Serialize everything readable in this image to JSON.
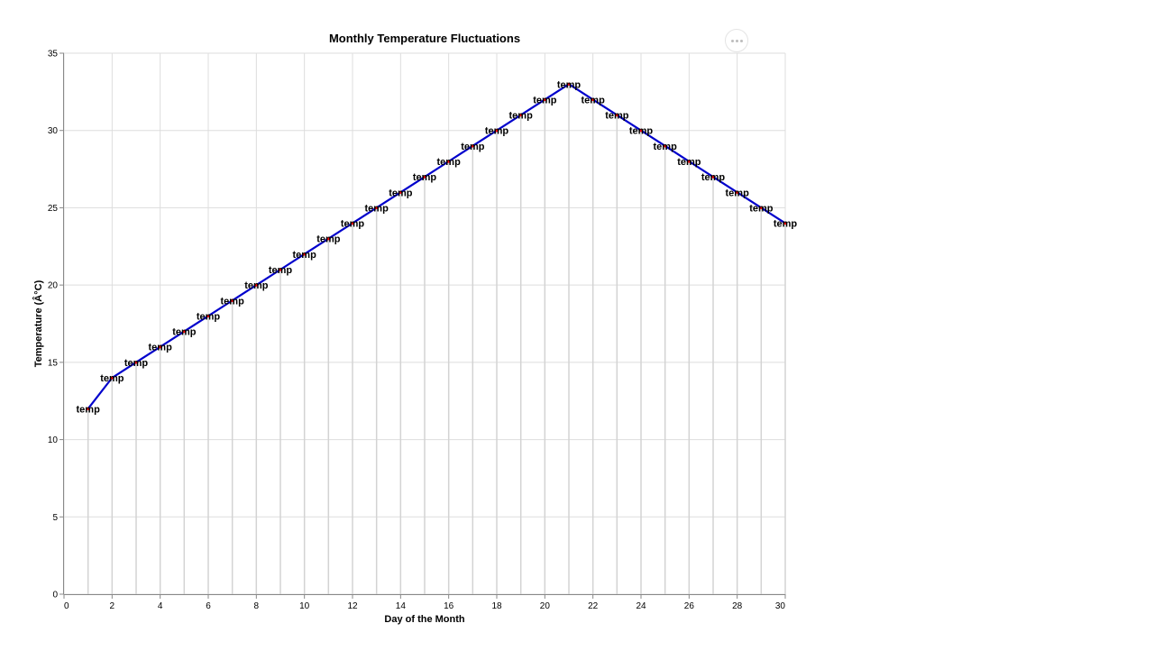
{
  "actions_menu": {
    "icon": "more-horizontal-icon"
  },
  "chart_data": {
    "type": "line",
    "title": "Monthly Temperature Fluctuations",
    "xlabel": "Day of the Month",
    "ylabel": "Temperature (Â°C)",
    "xlim": [
      0,
      30
    ],
    "ylim": [
      0,
      35
    ],
    "x_ticks": [
      0,
      2,
      4,
      6,
      8,
      10,
      12,
      14,
      16,
      18,
      20,
      22,
      24,
      26,
      28,
      30
    ],
    "y_ticks": [
      0,
      5,
      10,
      15,
      20,
      25,
      30,
      35
    ],
    "grid": true,
    "point_label": "temp",
    "line_color": "#0000cc",
    "point_color": "#ff0000",
    "rule_color": "#d3d3d3",
    "series": [
      {
        "x": [
          1,
          2,
          3,
          4,
          5,
          6,
          7,
          8,
          9,
          10,
          11,
          12,
          13,
          14,
          15,
          16,
          17,
          18,
          19,
          20,
          21,
          22,
          23,
          24,
          25,
          26,
          27,
          28,
          29,
          30
        ],
        "y": [
          12,
          14,
          15,
          16,
          17,
          18,
          19,
          20,
          21,
          22,
          23,
          24,
          25,
          26,
          27,
          28,
          29,
          30,
          31,
          32,
          33,
          32,
          31,
          30,
          29,
          28,
          27,
          26,
          25,
          24
        ]
      }
    ]
  }
}
